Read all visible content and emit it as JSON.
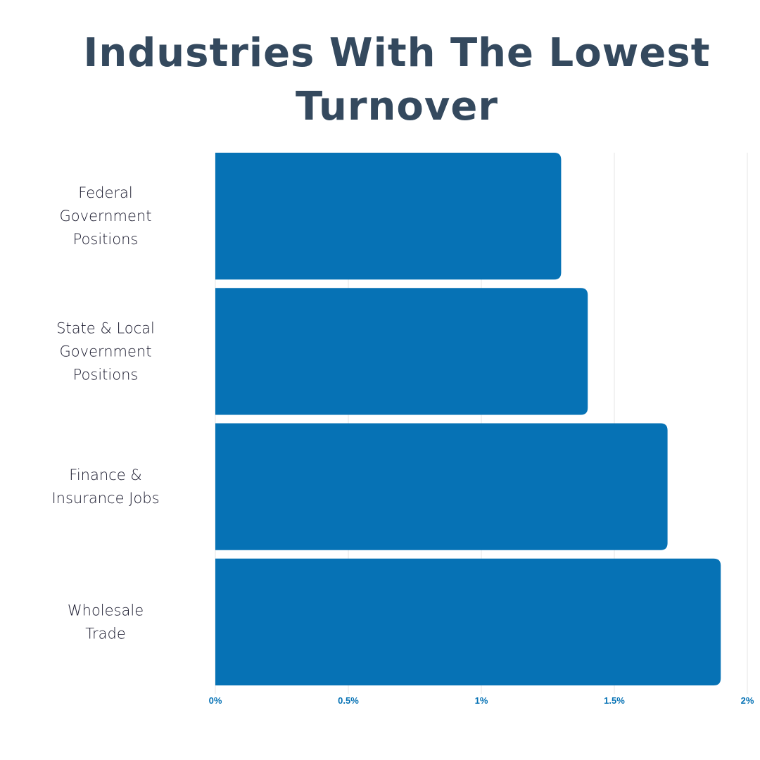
{
  "chart_data": {
    "type": "bar",
    "orientation": "horizontal",
    "title": "Industries With The Lowest Turnover",
    "categories": [
      [
        "Federal",
        "Government",
        "Positions"
      ],
      [
        "State & Local",
        "Government",
        "Positions"
      ],
      [
        "Finance &",
        "Insurance Jobs"
      ],
      [
        "Wholesale",
        "Trade"
      ]
    ],
    "values": [
      1.3,
      1.4,
      1.7,
      1.9
    ],
    "xlim": [
      0,
      2
    ],
    "xticks": [
      0,
      0.5,
      1,
      1.5,
      2
    ],
    "xtick_labels": [
      "0%",
      "0.5%",
      "1%",
      "1.5%",
      "2%"
    ],
    "grid": "vertical",
    "bar_color": "#0672b5",
    "title_color": "#34495e",
    "tick_color": "#0672b5"
  }
}
